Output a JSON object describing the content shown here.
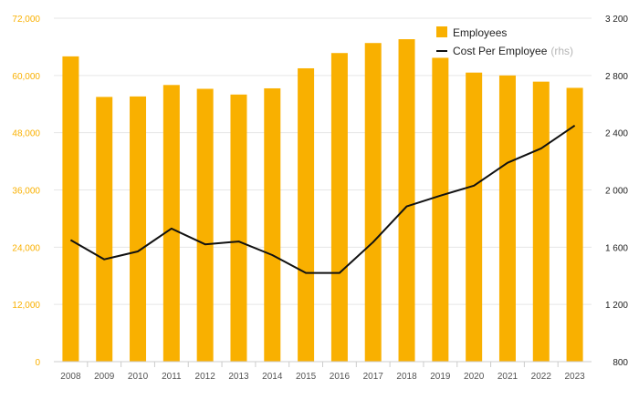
{
  "chart_data": {
    "type": "bar+line",
    "categories": [
      "2008",
      "2009",
      "2010",
      "2011",
      "2012",
      "2013",
      "2014",
      "2015",
      "2016",
      "2017",
      "2018",
      "2019",
      "2020",
      "2021",
      "2022",
      "2023"
    ],
    "series": [
      {
        "name": "Employees",
        "type": "bar",
        "axis": "left",
        "color": "#F9B000",
        "values": [
          64000,
          55500,
          55600,
          58000,
          57200,
          56000,
          57300,
          61500,
          64700,
          66800,
          67600,
          63700,
          60600,
          60000,
          58700,
          57400
        ]
      },
      {
        "name": "Cost Per Employee",
        "legend_suffix": "(rhs)",
        "type": "line",
        "axis": "right",
        "color": "#111111",
        "values": [
          1650,
          1515,
          1570,
          1730,
          1620,
          1640,
          1545,
          1420,
          1420,
          1635,
          1885,
          1960,
          2030,
          2190,
          2290,
          2450
        ]
      }
    ],
    "y_left": {
      "ticks": [
        "0",
        "12,000",
        "24,000",
        "36,000",
        "48,000",
        "60,000",
        "72,000"
      ],
      "range": [
        0,
        72000
      ],
      "color": "#F9B000"
    },
    "y_right": {
      "ticks": [
        "800",
        "1 200",
        "1 600",
        "2 000",
        "2 400",
        "2 800",
        "3 200"
      ],
      "range": [
        800,
        3200
      ],
      "color": "#222222"
    },
    "grid": true,
    "legend_position": "top-right"
  }
}
